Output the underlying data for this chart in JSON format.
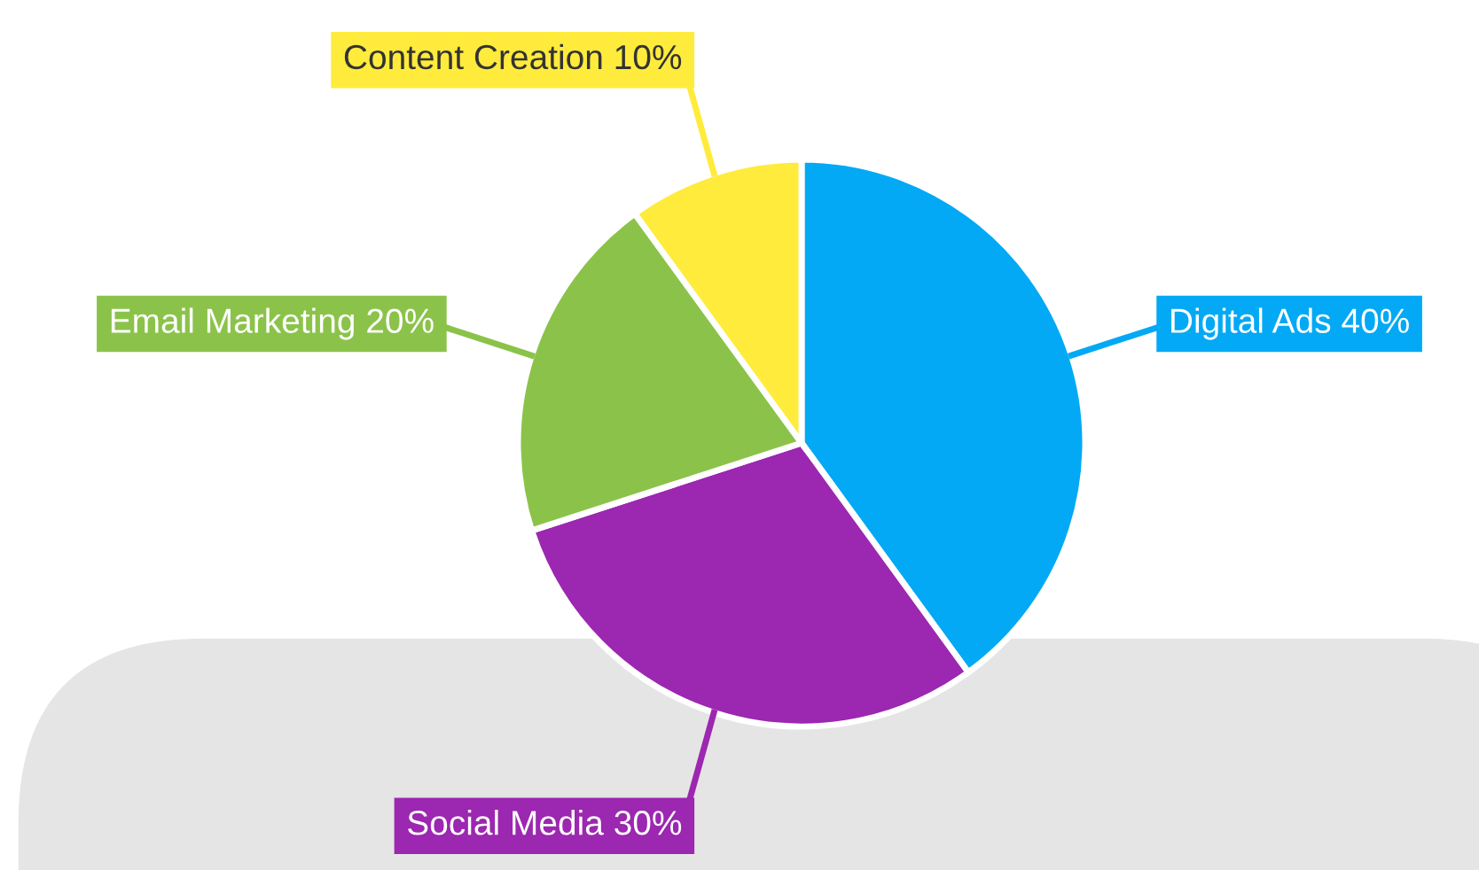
{
  "chart_data": {
    "type": "pie",
    "categories": [
      "Digital Ads",
      "Social Media",
      "Email Marketing",
      "Content Creation"
    ],
    "values": [
      40,
      30,
      20,
      10
    ],
    "colors": [
      "#03a9f4",
      "#9c27b0",
      "#8bc34a",
      "#ffeb3b"
    ],
    "value_labels": [
      "40%",
      "30%",
      "20%",
      "10%"
    ]
  }
}
